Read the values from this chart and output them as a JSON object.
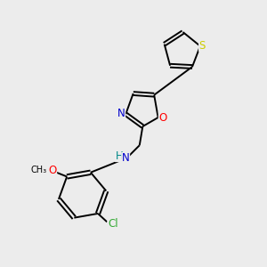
{
  "background_color": "#ececec",
  "bond_color": "#000000",
  "atom_colors": {
    "S": "#cccc00",
    "O": "#ff0000",
    "N": "#0000cc",
    "Cl": "#33aa33",
    "C": "#000000",
    "H": "#008888"
  },
  "font_size_atoms": 8.5,
  "font_size_small": 7.5,
  "lw": 1.4
}
